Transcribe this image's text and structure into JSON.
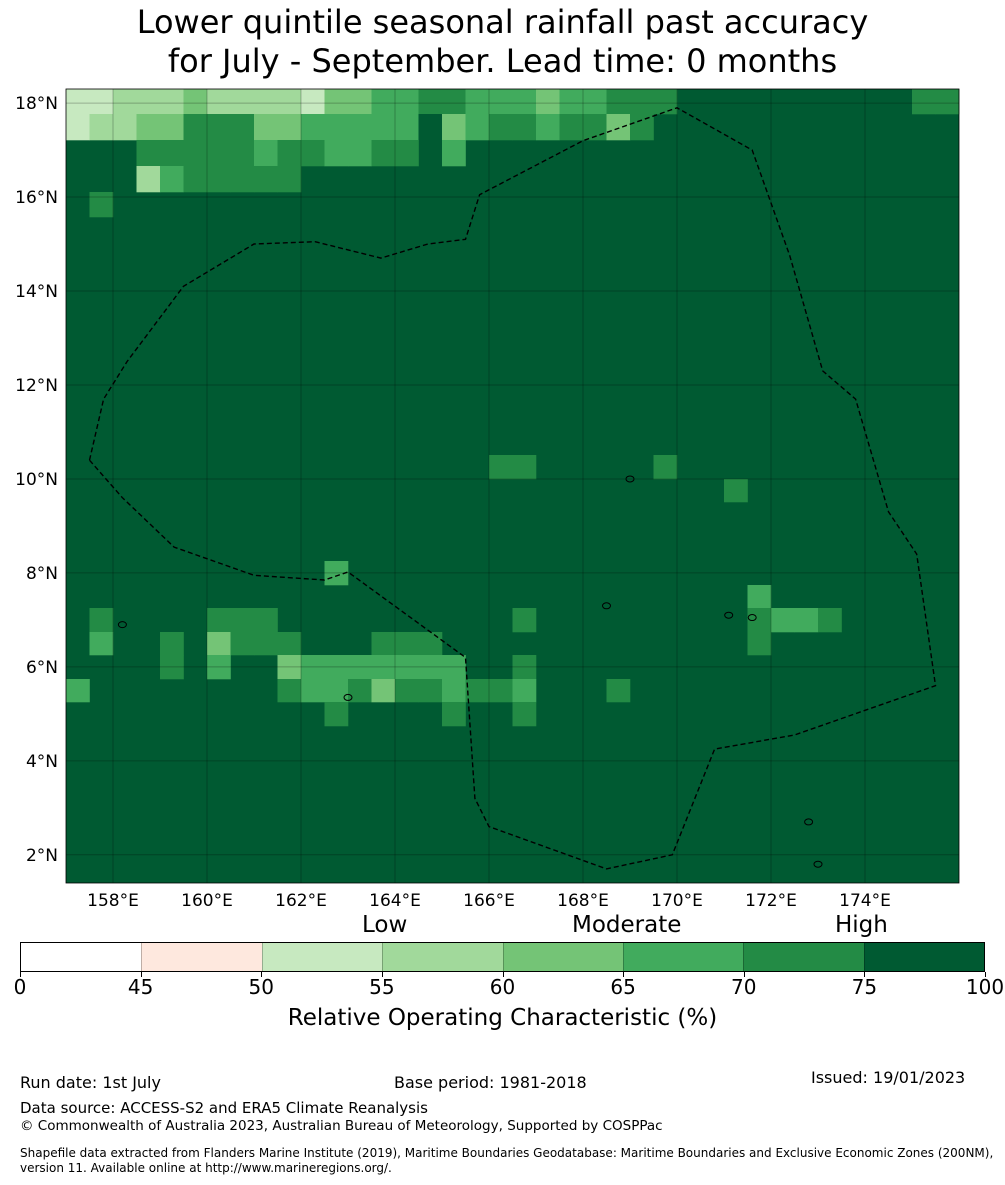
{
  "title_line1": "Lower quintile seasonal rainfall past accuracy",
  "title_line2": "for July - September. Lead time: 0 months",
  "map": {
    "lon_range": [
      157.0,
      176.0
    ],
    "lat_range": [
      1.4,
      18.3
    ],
    "lon_ticks": [
      "158°E",
      "160°E",
      "162°E",
      "164°E",
      "166°E",
      "168°E",
      "170°E",
      "172°E",
      "174°E"
    ],
    "lat_ticks": [
      "2°N",
      "4°N",
      "6°N",
      "8°N",
      "10°N",
      "12°N",
      "14°N",
      "16°N",
      "18°N"
    ],
    "gridlines": true,
    "background_category": 7,
    "eez_boundary": "dashed",
    "cells": [
      [
        157.0,
        17.5,
        2
      ],
      [
        157.5,
        17.5,
        2
      ],
      [
        158.0,
        17.5,
        3
      ],
      [
        158.5,
        17.5,
        3
      ],
      [
        159.0,
        17.5,
        3
      ],
      [
        159.5,
        17.5,
        4
      ],
      [
        160.0,
        17.5,
        3
      ],
      [
        160.5,
        17.5,
        3
      ],
      [
        161.0,
        17.5,
        3
      ],
      [
        161.5,
        17.5,
        3
      ],
      [
        162.0,
        17.5,
        2
      ],
      [
        162.5,
        17.5,
        4
      ],
      [
        163.0,
        17.5,
        4
      ],
      [
        163.5,
        17.5,
        5
      ],
      [
        164.0,
        17.5,
        5
      ],
      [
        164.5,
        17.5,
        6
      ],
      [
        165.0,
        17.5,
        6
      ],
      [
        165.5,
        17.5,
        5
      ],
      [
        166.0,
        17.5,
        5
      ],
      [
        166.5,
        17.5,
        5
      ],
      [
        167.0,
        17.5,
        4
      ],
      [
        167.5,
        17.5,
        5
      ],
      [
        168.0,
        17.5,
        5
      ],
      [
        168.5,
        17.5,
        6
      ],
      [
        169.0,
        17.5,
        6
      ],
      [
        169.5,
        17.5,
        6
      ],
      [
        175.0,
        17.5,
        6
      ],
      [
        175.5,
        17.5,
        6
      ],
      [
        157.0,
        17.0,
        2
      ],
      [
        157.5,
        17.0,
        3
      ],
      [
        158.0,
        17.0,
        3
      ],
      [
        158.5,
        17.0,
        4
      ],
      [
        159.0,
        17.0,
        4
      ],
      [
        159.5,
        17.0,
        6
      ],
      [
        160.0,
        17.0,
        6
      ],
      [
        160.5,
        17.0,
        6
      ],
      [
        161.0,
        17.0,
        4
      ],
      [
        161.5,
        17.0,
        4
      ],
      [
        162.0,
        17.0,
        5
      ],
      [
        162.5,
        17.0,
        5
      ],
      [
        163.0,
        17.0,
        5
      ],
      [
        163.5,
        17.0,
        5
      ],
      [
        164.0,
        17.0,
        5
      ],
      [
        164.5,
        17.0,
        7
      ],
      [
        165.0,
        17.0,
        4
      ],
      [
        165.5,
        17.0,
        5
      ],
      [
        166.0,
        17.0,
        6
      ],
      [
        166.5,
        17.0,
        6
      ],
      [
        167.0,
        17.0,
        5
      ],
      [
        167.5,
        17.0,
        6
      ],
      [
        168.0,
        17.0,
        6
      ],
      [
        168.5,
        17.0,
        4
      ],
      [
        169.0,
        17.0,
        6
      ],
      [
        158.5,
        16.5,
        6
      ],
      [
        159.0,
        16.5,
        6
      ],
      [
        159.5,
        16.5,
        6
      ],
      [
        160.0,
        16.5,
        6
      ],
      [
        160.5,
        16.5,
        6
      ],
      [
        161.0,
        16.5,
        5
      ],
      [
        161.5,
        16.5,
        6
      ],
      [
        162.0,
        16.5,
        6
      ],
      [
        162.5,
        16.5,
        5
      ],
      [
        163.0,
        16.5,
        5
      ],
      [
        163.5,
        16.5,
        6
      ],
      [
        164.0,
        16.5,
        6
      ],
      [
        165.0,
        16.5,
        5
      ],
      [
        158.5,
        16.0,
        3
      ],
      [
        159.0,
        16.0,
        5
      ],
      [
        159.5,
        16.0,
        6
      ],
      [
        160.0,
        16.0,
        6
      ],
      [
        160.5,
        16.0,
        6
      ],
      [
        161.0,
        16.0,
        6
      ],
      [
        161.5,
        16.0,
        6
      ],
      [
        157.5,
        15.5,
        6
      ],
      [
        166.0,
        10.0,
        6
      ],
      [
        166.5,
        10.0,
        6
      ],
      [
        169.5,
        10.0,
        6
      ],
      [
        171.0,
        9.5,
        6
      ],
      [
        162.5,
        7.75,
        5
      ],
      [
        171.5,
        7.25,
        5
      ],
      [
        157.5,
        6.75,
        6
      ],
      [
        160.0,
        6.75,
        6
      ],
      [
        160.5,
        6.75,
        6
      ],
      [
        161.0,
        6.75,
        6
      ],
      [
        166.5,
        6.75,
        6
      ],
      [
        171.5,
        6.75,
        6
      ],
      [
        172.0,
        6.75,
        5
      ],
      [
        172.5,
        6.75,
        5
      ],
      [
        173.0,
        6.75,
        6
      ],
      [
        157.5,
        6.25,
        5
      ],
      [
        159.0,
        6.25,
        6
      ],
      [
        160.0,
        6.25,
        4
      ],
      [
        160.5,
        6.25,
        6
      ],
      [
        161.0,
        6.25,
        6
      ],
      [
        161.5,
        6.25,
        6
      ],
      [
        163.5,
        6.25,
        6
      ],
      [
        164.0,
        6.25,
        6
      ],
      [
        164.5,
        6.25,
        6
      ],
      [
        171.5,
        6.25,
        6
      ],
      [
        159.0,
        5.75,
        6
      ],
      [
        160.0,
        5.75,
        5
      ],
      [
        161.5,
        5.75,
        4
      ],
      [
        162.0,
        5.75,
        5
      ],
      [
        162.5,
        5.75,
        5
      ],
      [
        163.0,
        5.75,
        5
      ],
      [
        163.5,
        5.75,
        5
      ],
      [
        164.0,
        5.75,
        5
      ],
      [
        164.5,
        5.75,
        5
      ],
      [
        165.0,
        5.75,
        5
      ],
      [
        166.5,
        5.75,
        6
      ],
      [
        157.0,
        5.25,
        5
      ],
      [
        161.5,
        5.25,
        6
      ],
      [
        162.0,
        5.25,
        5
      ],
      [
        162.5,
        5.25,
        5
      ],
      [
        163.0,
        5.25,
        6
      ],
      [
        163.5,
        5.25,
        4
      ],
      [
        164.0,
        5.25,
        6
      ],
      [
        164.5,
        5.25,
        6
      ],
      [
        165.0,
        5.25,
        5
      ],
      [
        165.5,
        5.25,
        6
      ],
      [
        166.0,
        5.25,
        6
      ],
      [
        166.5,
        5.25,
        5
      ],
      [
        168.5,
        5.25,
        6
      ],
      [
        162.5,
        4.75,
        6
      ],
      [
        165.0,
        4.75,
        6
      ],
      [
        166.5,
        4.75,
        6
      ]
    ],
    "eez_path": [
      [
        157.5,
        10.4
      ],
      [
        158.2,
        9.6
      ],
      [
        159.3,
        8.55
      ],
      [
        161.0,
        7.95
      ],
      [
        162.5,
        7.85
      ],
      [
        163.0,
        8.02
      ],
      [
        165.5,
        6.2
      ],
      [
        165.7,
        3.2
      ],
      [
        166.0,
        2.6
      ],
      [
        168.5,
        1.7
      ],
      [
        169.9,
        2.0
      ],
      [
        170.8,
        4.25
      ],
      [
        172.5,
        4.55
      ],
      [
        175.5,
        5.6
      ],
      [
        175.1,
        8.4
      ],
      [
        174.5,
        9.3
      ],
      [
        173.8,
        11.7
      ],
      [
        173.1,
        12.3
      ],
      [
        172.4,
        14.75
      ],
      [
        171.6,
        17.0
      ],
      [
        170.0,
        17.9
      ],
      [
        168.0,
        17.2
      ],
      [
        165.8,
        16.05
      ],
      [
        165.5,
        15.1
      ],
      [
        164.7,
        15.0
      ],
      [
        163.7,
        14.7
      ],
      [
        162.3,
        15.05
      ],
      [
        161.0,
        15.0
      ],
      [
        159.5,
        14.1
      ],
      [
        158.3,
        12.5
      ],
      [
        157.8,
        11.7
      ],
      [
        157.5,
        10.4
      ]
    ]
  },
  "levels": {
    "low": "Low",
    "moderate": "Moderate",
    "high": "High"
  },
  "colorbar": {
    "colors": [
      "#ffffff",
      "#fee8de",
      "#c7e9c0",
      "#a1d99b",
      "#74c476",
      "#41ab5d",
      "#238b45",
      "#005a32"
    ],
    "ticks": [
      "0",
      "45",
      "50",
      "55",
      "60",
      "65",
      "70",
      "75",
      "100"
    ],
    "label": "Relative Operating Characteristic (%)"
  },
  "footer": {
    "run_date": "Run date: 1st July",
    "base_period": "Base period: 1981-2018",
    "issued": "Issued: 19/01/2023",
    "data_source": "Data source: ACCESS-S2 and ERA5 Climate Reanalysis",
    "copyright": "© Commonwealth of Australia 2023, Australian Bureau of Meteorology, Supported by COSPPac",
    "shapefile": "Shapefile data extracted from Flanders Marine Institute (2019), Maritime Boundaries Geodatabase: Maritime Boundaries and Exclusive Economic Zones (200NM), version 11. Available online at http://www.marineregions.org/."
  }
}
